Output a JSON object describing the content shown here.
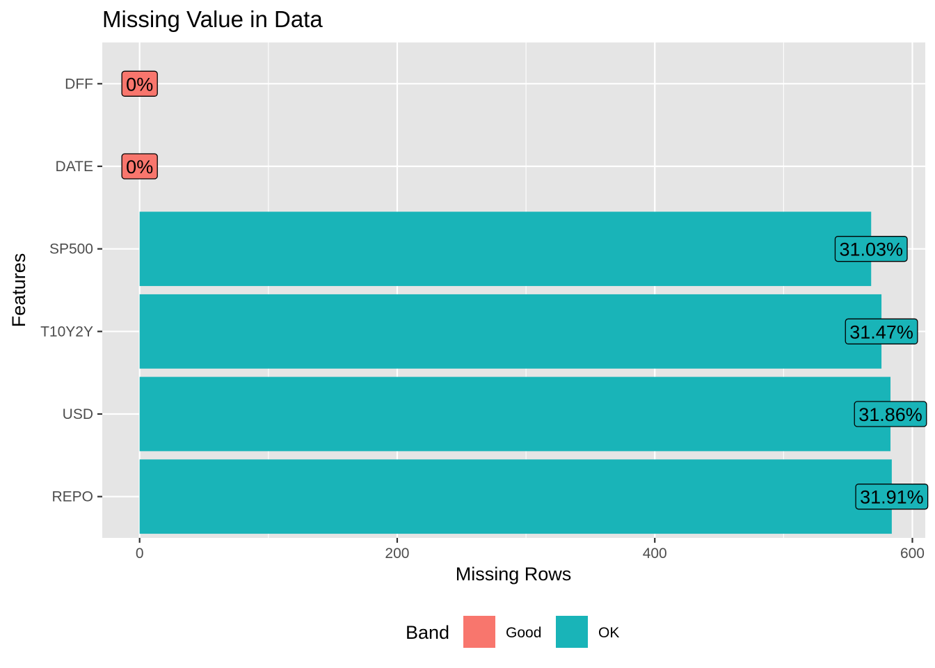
{
  "chart_data": {
    "type": "bar",
    "orientation": "horizontal",
    "title": "Missing Value in Data",
    "xlabel": "Missing Rows",
    "ylabel": "Features",
    "xlim": [
      -29,
      610
    ],
    "x_ticks": [
      0,
      200,
      400,
      600
    ],
    "categories": [
      "REPO",
      "USD",
      "T10Y2Y",
      "SP500",
      "DATE",
      "DFF"
    ],
    "values": [
      584,
      583,
      576,
      568,
      0,
      0
    ],
    "bands": [
      "OK",
      "OK",
      "OK",
      "OK",
      "Good",
      "Good"
    ],
    "labels": [
      "31.91%",
      "31.86%",
      "31.47%",
      "31.03%",
      "0%",
      "0%"
    ],
    "grid": true,
    "legend": {
      "title": "Band",
      "placement": "bottom",
      "items": [
        {
          "label": "Good",
          "color": "#f8766d"
        },
        {
          "label": "OK",
          "color": "#19b4b8"
        }
      ]
    },
    "colors": {
      "Good": "#f8766d",
      "OK": "#19b4b8",
      "panel": "#e5e5e5",
      "grid": "#ffffff"
    }
  }
}
